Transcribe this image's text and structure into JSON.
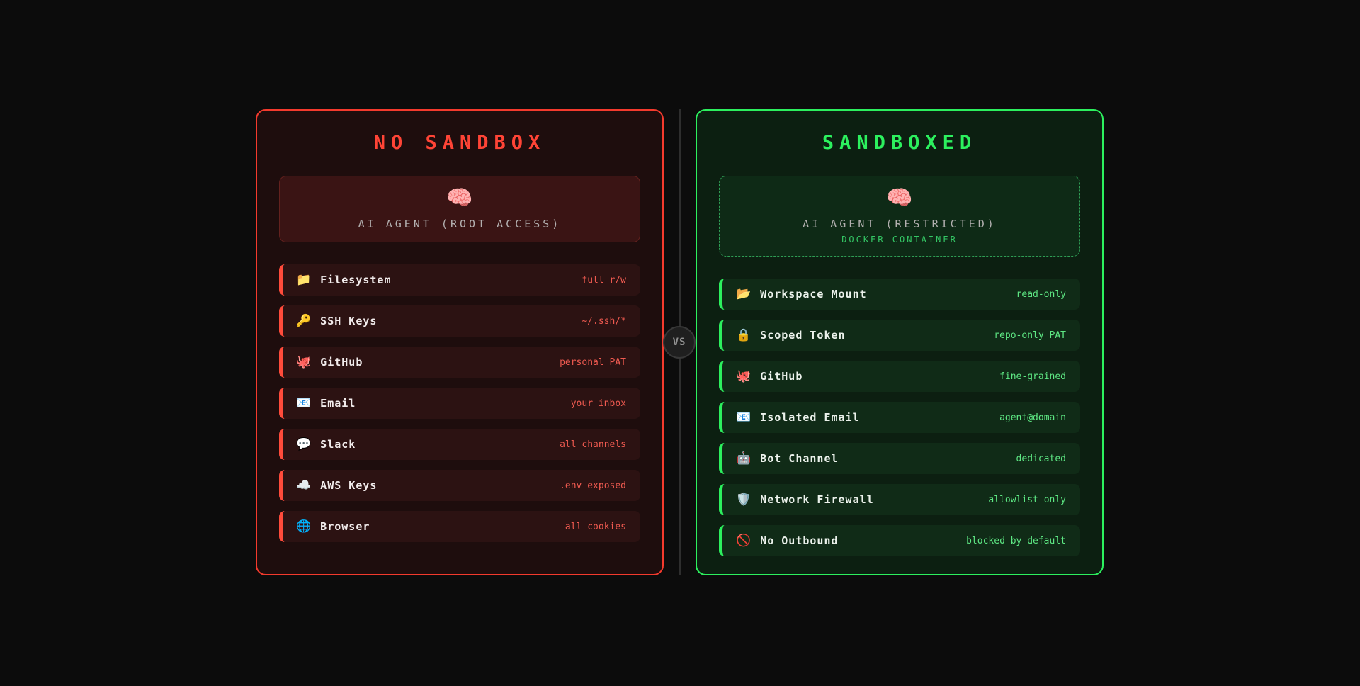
{
  "vs_badge": {
    "label": "VS"
  },
  "colors": {
    "page_background": "#0c0c0c",
    "red_accent": "#ff4436",
    "red_panel_background": "#1e0d0d",
    "red_row_background": "#2c1212",
    "red_value_text": "#ef5a50",
    "green_accent": "#2cf05e",
    "green_panel_background": "#0c1f11",
    "green_row_background": "#102b17",
    "green_value_text": "#5ee884",
    "agent_name_text": "#b3b0b0",
    "docker_label_text": "#34c765"
  },
  "left_panel": {
    "title": "NO SANDBOX",
    "agent": {
      "icon": "🧠",
      "name": "AI AGENT (ROOT ACCESS)"
    },
    "rows": [
      {
        "icon": "📁",
        "label": "Filesystem",
        "value": "full r/w"
      },
      {
        "icon": "🔑",
        "label": "SSH Keys",
        "value": "~/.ssh/*"
      },
      {
        "icon": "🐙",
        "label": "GitHub",
        "value": "personal PAT"
      },
      {
        "icon": "📧",
        "label": "Email",
        "value": "your inbox"
      },
      {
        "icon": "💬",
        "label": "Slack",
        "value": "all channels"
      },
      {
        "icon": "☁️",
        "label": "AWS Keys",
        "value": ".env exposed"
      },
      {
        "icon": "🌐",
        "label": "Browser",
        "value": "all cookies"
      }
    ]
  },
  "right_panel": {
    "title": "SANDBOXED",
    "agent": {
      "icon": "🧠",
      "name": "AI AGENT (RESTRICTED)",
      "sub": "DOCKER CONTAINER"
    },
    "rows": [
      {
        "icon": "📂",
        "label": "Workspace Mount",
        "value": "read-only"
      },
      {
        "icon": "🔒",
        "label": "Scoped Token",
        "value": "repo-only PAT"
      },
      {
        "icon": "🐙",
        "label": "GitHub",
        "value": "fine-grained"
      },
      {
        "icon": "📧",
        "label": "Isolated Email",
        "value": "agent@domain"
      },
      {
        "icon": "🤖",
        "label": "Bot Channel",
        "value": "dedicated"
      },
      {
        "icon": "🛡️",
        "label": "Network Firewall",
        "value": "allowlist only"
      },
      {
        "icon": "🚫",
        "label": "No Outbound",
        "value": "blocked by default"
      }
    ]
  }
}
